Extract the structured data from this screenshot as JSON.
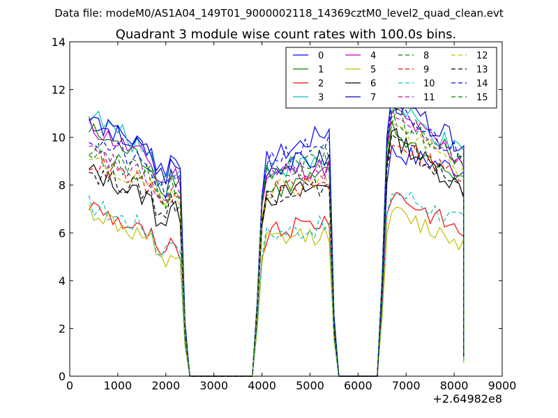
{
  "figure": {
    "suptitle": "Data file: modeM0/AS1A04_149T01_9000002118_14369cztM0_level2_quad_clean.evt"
  },
  "chart_data": {
    "type": "line",
    "title": "Quadrant 3 module wise count rates with 100.0s bins.",
    "xlabel": "",
    "ylabel": "",
    "x_offset_label": "+2.64982e8",
    "xlim": [
      0,
      9000
    ],
    "ylim": [
      0,
      14
    ],
    "xticks": [
      0,
      1000,
      2000,
      3000,
      4000,
      5000,
      6000,
      7000,
      8000,
      9000
    ],
    "yticks": [
      0,
      2,
      4,
      6,
      8,
      10,
      12,
      14
    ],
    "grid": false,
    "legend_position": "top-right",
    "segments": [
      {
        "x_start": 400,
        "x_end": 2300,
        "step": 100
      },
      {
        "x_start": 3900,
        "x_end": 5400,
        "step": 100
      },
      {
        "x_start": 6500,
        "x_end": 8200,
        "step": 100
      }
    ],
    "gaps": [
      {
        "x_from": 2300,
        "x_to": 2500,
        "y_end": 0.0
      },
      {
        "x_from": 3800,
        "x_to": 3900,
        "y_start": 0.0
      },
      {
        "x_from": 5400,
        "x_to": 5500,
        "y_end": 0.0
      },
      {
        "x_from": 6400,
        "x_to": 6500,
        "y_start": 0.0
      }
    ],
    "series": [
      {
        "name": "0",
        "color": "#0000ff",
        "dash": "solid",
        "levels": [
          10.7,
          9.0,
          8.8,
          10.3,
          9.5,
          8.6
        ]
      },
      {
        "name": "1",
        "color": "#008000",
        "dash": "solid",
        "levels": [
          10.3,
          8.2,
          7.6,
          8.4,
          10.6,
          8.0
        ]
      },
      {
        "name": "2",
        "color": "#ff0000",
        "dash": "solid",
        "levels": [
          7.2,
          5.2,
          5.8,
          6.6,
          8.0,
          6.0
        ]
      },
      {
        "name": "3",
        "color": "#00bfbf",
        "dash": "solid",
        "levels": [
          11.0,
          8.5,
          8.6,
          9.0,
          11.6,
          9.2
        ]
      },
      {
        "name": "4",
        "color": "#bf00bf",
        "dash": "solid",
        "levels": [
          10.5,
          8.3,
          8.4,
          8.8,
          11.4,
          9.0
        ]
      },
      {
        "name": "5",
        "color": "#bfbf00",
        "dash": "solid",
        "levels": [
          7.0,
          4.9,
          5.6,
          6.0,
          7.0,
          5.6
        ]
      },
      {
        "name": "6",
        "color": "#000000",
        "dash": "solid",
        "levels": [
          8.6,
          6.8,
          7.4,
          8.0,
          10.4,
          7.8
        ]
      },
      {
        "name": "7",
        "color": "#0000bf",
        "dash": "solid",
        "levels": [
          10.8,
          8.6,
          8.7,
          9.1,
          11.8,
          9.6
        ]
      },
      {
        "name": "8",
        "color": "#008000",
        "dash": "dashed",
        "levels": [
          9.5,
          7.8,
          8.6,
          9.0,
          11.2,
          8.8
        ]
      },
      {
        "name": "9",
        "color": "#ff0000",
        "dash": "dashed",
        "levels": [
          9.0,
          7.4,
          7.8,
          8.0,
          10.2,
          8.2
        ]
      },
      {
        "name": "10",
        "color": "#00bfbf",
        "dash": "dashed",
        "levels": [
          7.2,
          5.6,
          5.9,
          6.3,
          8.0,
          6.4
        ]
      },
      {
        "name": "11",
        "color": "#bf00bf",
        "dash": "dashed",
        "levels": [
          9.4,
          7.6,
          8.4,
          8.6,
          11.2,
          9.0
        ]
      },
      {
        "name": "12",
        "color": "#bfbf00",
        "dash": "dashed",
        "levels": [
          9.0,
          7.5,
          7.8,
          8.2,
          10.8,
          8.6
        ]
      },
      {
        "name": "13",
        "color": "#000000",
        "dash": "dashed",
        "levels": [
          8.6,
          7.2,
          7.6,
          8.0,
          10.2,
          7.8
        ]
      },
      {
        "name": "14",
        "color": "#0000ff",
        "dash": "dashed",
        "levels": [
          10.0,
          8.0,
          9.0,
          9.8,
          11.4,
          9.2
        ]
      },
      {
        "name": "15",
        "color": "#008000",
        "dash": "dashed",
        "levels": [
          9.6,
          7.8,
          8.4,
          9.4,
          11.2,
          9.0
        ]
      }
    ]
  }
}
